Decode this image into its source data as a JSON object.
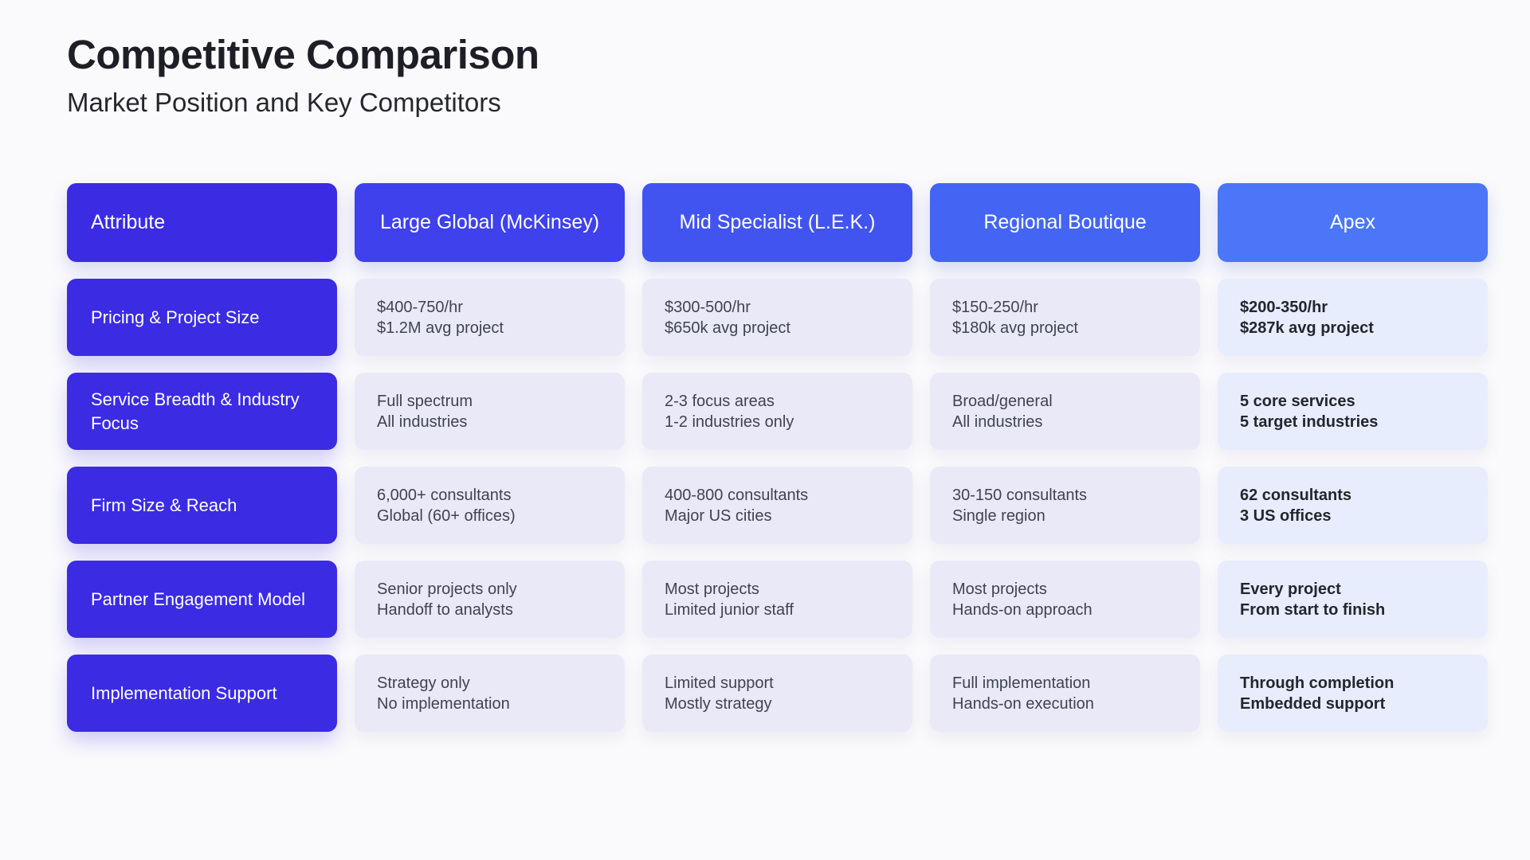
{
  "page": {
    "title": "Competitive Comparison",
    "subtitle": "Market Position and Key Competitors"
  },
  "colors": {
    "header_gradient": [
      "#3B2BE3",
      "#3E41EC",
      "#4254F0",
      "#4465F3",
      "#4B76F7"
    ],
    "attribute_cell_bg": "#3B2BE3",
    "data_cell_bg": "#EAE9F8",
    "apex_cell_bg": "#E7EDFC",
    "header_text": "#FFFFFF",
    "data_text": "#3F4450",
    "apex_text": "#23262E",
    "title_text": "#1E1F26",
    "page_bg": "#FAFAFC"
  },
  "table": {
    "columns": [
      {
        "label": "Attribute"
      },
      {
        "label": "Large Global (McKinsey)"
      },
      {
        "label": "Mid Specialist (L.E.K.)"
      },
      {
        "label": "Regional Boutique"
      },
      {
        "label": "Apex",
        "highlight": true
      }
    ],
    "rows": [
      {
        "attribute": "Pricing & Project Size",
        "cells": [
          {
            "line1": "$400-750/hr",
            "line2": "$1.2M avg project"
          },
          {
            "line1": "$300-500/hr",
            "line2": "$650k avg project"
          },
          {
            "line1": "$150-250/hr",
            "line2": "$180k avg project"
          },
          {
            "line1": "$200-350/hr",
            "line2": "$287k avg project"
          }
        ]
      },
      {
        "attribute": "Service Breadth & Industry Focus",
        "cells": [
          {
            "line1": "Full spectrum",
            "line2": "All industries"
          },
          {
            "line1": "2-3 focus areas",
            "line2": "1-2 industries only"
          },
          {
            "line1": "Broad/general",
            "line2": "All industries"
          },
          {
            "line1": "5 core services",
            "line2": "5 target industries"
          }
        ]
      },
      {
        "attribute": "Firm Size & Reach",
        "cells": [
          {
            "line1": "6,000+ consultants",
            "line2": "Global (60+ offices)"
          },
          {
            "line1": "400-800 consultants",
            "line2": "Major US cities"
          },
          {
            "line1": "30-150 consultants",
            "line2": "Single region"
          },
          {
            "line1": "62 consultants",
            "line2": "3 US offices"
          }
        ]
      },
      {
        "attribute": "Partner Engagement Model",
        "cells": [
          {
            "line1": "Senior projects only",
            "line2": "Handoff to analysts"
          },
          {
            "line1": "Most projects",
            "line2": "Limited junior staff"
          },
          {
            "line1": "Most projects",
            "line2": "Hands-on approach"
          },
          {
            "line1": "Every project",
            "line2": "From start to finish"
          }
        ]
      },
      {
        "attribute": "Implementation Support",
        "cells": [
          {
            "line1": "Strategy only",
            "line2": "No implementation"
          },
          {
            "line1": "Limited support",
            "line2": "Mostly strategy"
          },
          {
            "line1": "Full implementation",
            "line2": "Hands-on execution"
          },
          {
            "line1": "Through completion",
            "line2": "Embedded support"
          }
        ]
      }
    ]
  }
}
